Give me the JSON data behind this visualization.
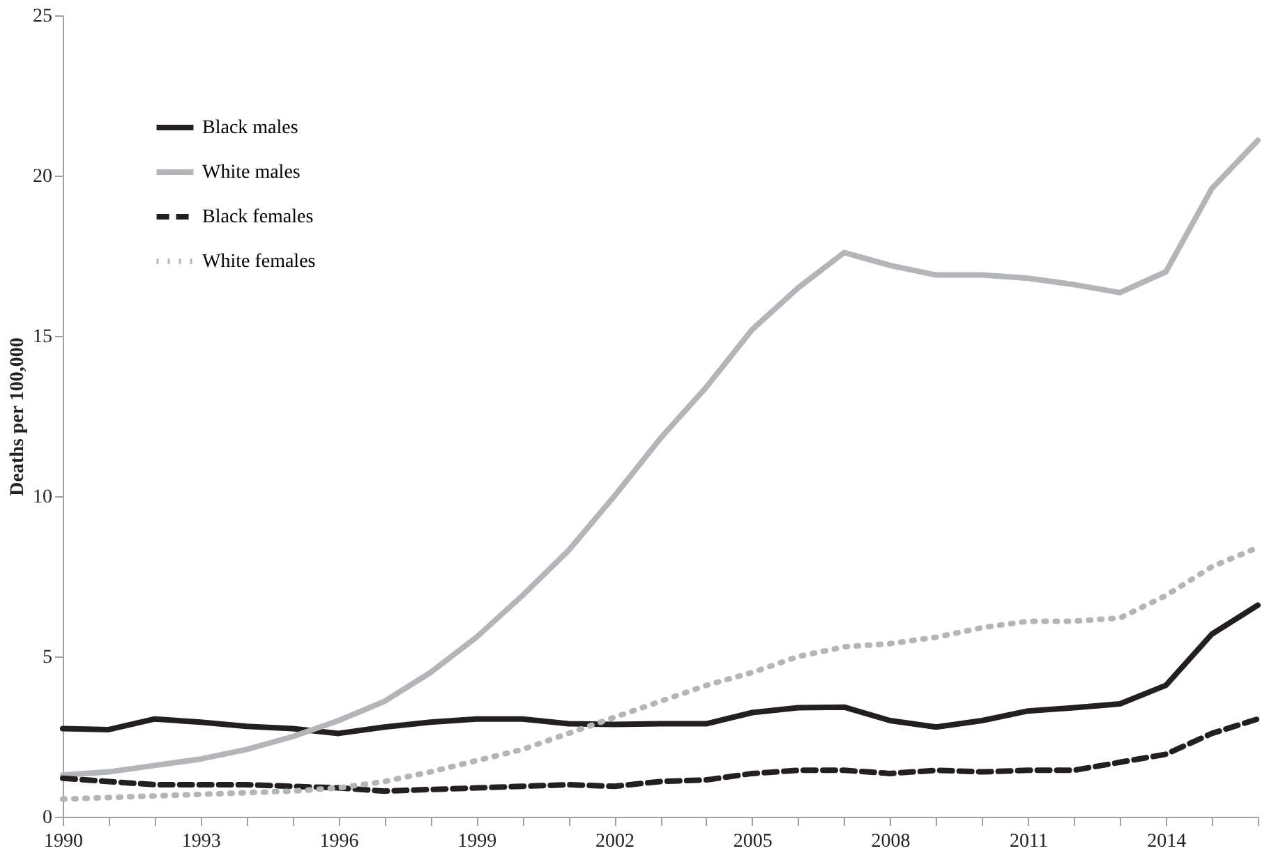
{
  "chart_data": {
    "type": "line",
    "ylabel": "Deaths per 100,000",
    "x": [
      1990,
      1991,
      1992,
      1993,
      1994,
      1995,
      1996,
      1997,
      1998,
      1999,
      2000,
      2001,
      2002,
      2003,
      2004,
      2005,
      2006,
      2007,
      2008,
      2009,
      2010,
      2011,
      2012,
      2013,
      2014,
      2015,
      2016
    ],
    "series": [
      {
        "name": "Black males",
        "color": "#231f20",
        "line_style": "solid",
        "values": [
          2.75,
          2.72,
          3.05,
          2.95,
          2.82,
          2.75,
          2.6,
          2.8,
          2.95,
          3.05,
          3.05,
          2.9,
          2.88,
          2.9,
          2.9,
          3.25,
          3.4,
          3.42,
          3.0,
          2.8,
          3.0,
          3.3,
          3.4,
          3.52,
          4.1,
          5.7,
          6.6
        ]
      },
      {
        "name": "White males",
        "color": "#b3b5b8",
        "line_style": "solid",
        "values": [
          1.3,
          1.4,
          1.6,
          1.8,
          2.1,
          2.5,
          3.0,
          3.6,
          4.5,
          5.6,
          6.9,
          8.3,
          10.0,
          11.8,
          13.4,
          15.2,
          16.5,
          17.6,
          17.2,
          16.9,
          16.9,
          16.8,
          16.6,
          16.35,
          17.0,
          19.6,
          21.1
        ]
      },
      {
        "name": "Black females",
        "color": "#231f20",
        "line_style": "dashed",
        "values": [
          1.2,
          1.1,
          1.0,
          1.0,
          1.0,
          0.95,
          0.9,
          0.8,
          0.85,
          0.9,
          0.95,
          1.0,
          0.95,
          1.1,
          1.15,
          1.35,
          1.45,
          1.45,
          1.35,
          1.45,
          1.4,
          1.45,
          1.45,
          1.7,
          1.95,
          2.6,
          3.05
        ]
      },
      {
        "name": "White females",
        "color": "#b3b5b8",
        "line_style": "dotted",
        "values": [
          0.55,
          0.6,
          0.65,
          0.7,
          0.75,
          0.8,
          0.9,
          1.1,
          1.4,
          1.75,
          2.1,
          2.6,
          3.1,
          3.6,
          4.1,
          4.5,
          5.0,
          5.3,
          5.4,
          5.6,
          5.9,
          6.1,
          6.1,
          6.2,
          6.9,
          7.8,
          8.4
        ]
      }
    ],
    "xlim": [
      1990,
      2016
    ],
    "xticks": [
      1990,
      {
        "value": 1991,
        "label": null
      },
      {
        "value": 1992,
        "label": null
      },
      1993,
      {
        "value": 1994,
        "label": null
      },
      {
        "value": 1995,
        "label": null
      },
      1996,
      {
        "value": 1997,
        "label": null
      },
      {
        "value": 1998,
        "label": null
      },
      1999,
      {
        "value": 2000,
        "label": null
      },
      {
        "value": 2001,
        "label": null
      },
      2002,
      {
        "value": 2003,
        "label": null
      },
      {
        "value": 2004,
        "label": null
      },
      2005,
      {
        "value": 2006,
        "label": null
      },
      {
        "value": 2007,
        "label": null
      },
      2008,
      {
        "value": 2009,
        "label": null
      },
      {
        "value": 2010,
        "label": null
      },
      2011,
      {
        "value": 2012,
        "label": null
      },
      {
        "value": 2013,
        "label": null
      },
      2014,
      {
        "value": 2015,
        "label": null
      },
      {
        "value": 2016,
        "label": null
      }
    ],
    "ylim": [
      0,
      25
    ],
    "yticks": [
      0,
      5,
      10,
      15,
      20,
      25
    ],
    "grid": false,
    "legend": "top left",
    "marker": "none"
  }
}
